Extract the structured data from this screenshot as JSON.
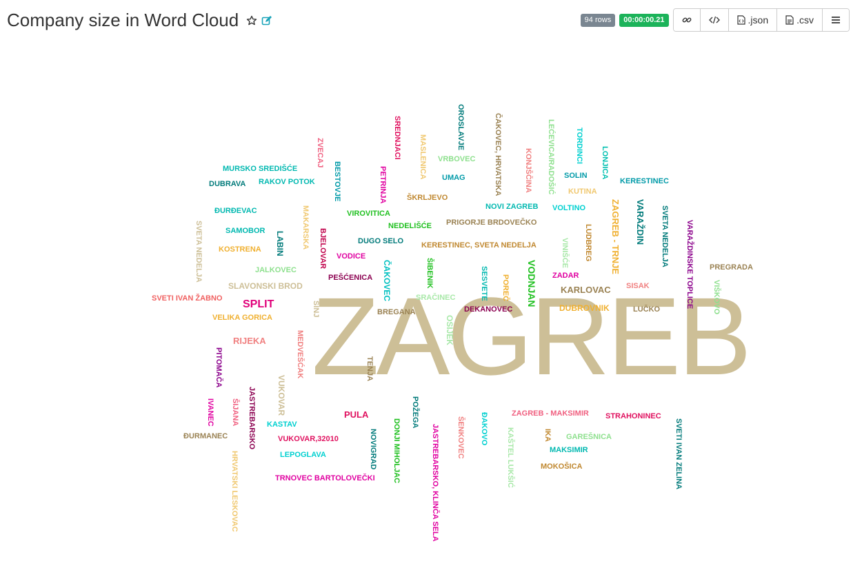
{
  "header": {
    "title": "Company size in Word Cloud",
    "rows_badge": "94 rows",
    "time_badge": "00:00:00.21",
    "buttons": [
      {
        "name": "link-button",
        "icon": "link-icon",
        "label": ""
      },
      {
        "name": "embed-button",
        "icon": "code-icon",
        "label": ""
      },
      {
        "name": "json-button",
        "icon": "file-code-icon",
        "label": ".json"
      },
      {
        "name": "csv-button",
        "icon": "file-text-icon",
        "label": ".csv"
      },
      {
        "name": "menu-button",
        "icon": "hamburger-icon",
        "label": ""
      }
    ],
    "colors": {
      "star": "#333333",
      "edit": "#17a2b8",
      "rows_badge": "#7a8691",
      "time_badge": "#1cb35a"
    }
  },
  "cloud": {
    "words": [
      {
        "text": "ZAGREB",
        "color": "#cdbf97",
        "size": 160
      },
      {
        "text": "SREDNJACI",
        "color": "#e0115f",
        "size": 11,
        "rotate": 90
      },
      {
        "text": "OROSLAVJE",
        "color": "#007a7a",
        "size": 11,
        "rotate": 90
      },
      {
        "text": "ČAKOVEC, HRVATSKA",
        "color": "#9a8253",
        "size": 11,
        "rotate": 90
      },
      {
        "text": "LEĆEVICA/RADOŠIĆ",
        "color": "#8ee08e",
        "size": 11,
        "rotate": 90
      },
      {
        "text": "TORDINCI",
        "color": "#00d0d0",
        "size": 11,
        "rotate": 90
      },
      {
        "text": "LONJICA",
        "color": "#00c0b0",
        "size": 11,
        "rotate": 90
      },
      {
        "text": "ZVECAJ",
        "color": "#f06080",
        "size": 11,
        "rotate": 90
      },
      {
        "text": "MASLENICA",
        "color": "#f0c870",
        "size": 11,
        "rotate": 90
      },
      {
        "text": "KONJŠČINA",
        "color": "#f08080",
        "size": 11,
        "rotate": 90
      },
      {
        "text": "BESTOVJE",
        "color": "#009aa8",
        "size": 11,
        "rotate": 90
      },
      {
        "text": "MURSKO SREDIŠĆE",
        "color": "#00b8b0",
        "size": 11
      },
      {
        "text": "VRBOVEC",
        "color": "#8ee08e",
        "size": 11
      },
      {
        "text": "SOLIN",
        "color": "#009aa8",
        "size": 11
      },
      {
        "text": "PETRINJA",
        "color": "#e000a0",
        "size": 11,
        "rotate": 90
      },
      {
        "text": "UMAG",
        "color": "#009aa8",
        "size": 11
      },
      {
        "text": "KERESTINEC",
        "color": "#009aa8",
        "size": 11
      },
      {
        "text": "DUBRAVA",
        "color": "#007a7a",
        "size": 11
      },
      {
        "text": "RAKOV POTOK",
        "color": "#00b8b0",
        "size": 11
      },
      {
        "text": "KUTINA",
        "color": "#f0c870",
        "size": 11
      },
      {
        "text": "ŠKRLJEVO",
        "color": "#c08830",
        "size": 11
      },
      {
        "text": "ZAGREB - TRNJE",
        "color": "#f0b030",
        "size": 13,
        "rotate": 90
      },
      {
        "text": "VARAŽDIN",
        "color": "#007a7a",
        "size": 13,
        "rotate": 90
      },
      {
        "text": "SVETA NEDELJA",
        "color": "#007a7a",
        "size": 11,
        "rotate": 90
      },
      {
        "text": "NOVI ZAGREB",
        "color": "#00b8b0",
        "size": 11
      },
      {
        "text": "VOLTINO",
        "color": "#00d0d0",
        "size": 11
      },
      {
        "text": "ĐURĐEVAC",
        "color": "#00b8b0",
        "size": 11
      },
      {
        "text": "MAKARSKA",
        "color": "#f0c870",
        "size": 11,
        "rotate": 90
      },
      {
        "text": "VIROVITICA",
        "color": "#20c020",
        "size": 11
      },
      {
        "text": "SVETA NEDELJA",
        "color": "#cdbf97",
        "size": 11,
        "rotate": 90
      },
      {
        "text": "PRIGORJE BRDOVEČKO",
        "color": "#9a8253",
        "size": 11
      },
      {
        "text": "NEDELIŠĆE",
        "color": "#20c020",
        "size": 11
      },
      {
        "text": "LUDBREG",
        "color": "#c08830",
        "size": 11,
        "rotate": 90
      },
      {
        "text": "VARAŽDINSKE TOPLICE",
        "color": "#8b008b",
        "size": 11,
        "rotate": 90
      },
      {
        "text": "SAMOBOR",
        "color": "#00b8b0",
        "size": 11
      },
      {
        "text": "LABIN",
        "color": "#007a7a",
        "size": 12,
        "rotate": 90
      },
      {
        "text": "BJELOVAR",
        "color": "#c0004a",
        "size": 11,
        "rotate": 90
      },
      {
        "text": "DUGO SELO",
        "color": "#007a7a",
        "size": 11
      },
      {
        "text": "KERESTINEC, SVETA NEDELJA",
        "color": "#c08830",
        "size": 11
      },
      {
        "text": "VINIŠĆE",
        "color": "#a8e8a8",
        "size": 11,
        "rotate": 90
      },
      {
        "text": "KOSTRENA",
        "color": "#f0b030",
        "size": 11
      },
      {
        "text": "VODICE",
        "color": "#e000a0",
        "size": 11
      },
      {
        "text": "ČAKOVEC",
        "color": "#00c0c0",
        "size": 12,
        "rotate": 90
      },
      {
        "text": "ŠIBENIK",
        "color": "#20c020",
        "size": 11,
        "rotate": 90
      },
      {
        "text": "VODNJAN",
        "color": "#20c020",
        "size": 14,
        "rotate": 90
      },
      {
        "text": "PREGRADA",
        "color": "#9a8253",
        "size": 11
      },
      {
        "text": "JALKOVEC",
        "color": "#8ee08e",
        "size": 11
      },
      {
        "text": "SESVETE",
        "color": "#00b8b0",
        "size": 11,
        "rotate": 90
      },
      {
        "text": "POREČ",
        "color": "#f0b030",
        "size": 11,
        "rotate": 90
      },
      {
        "text": "ZADAR",
        "color": "#e000a0",
        "size": 11
      },
      {
        "text": "PEŠĆENICA",
        "color": "#8b0050",
        "size": 11
      },
      {
        "text": "SLAVONSKI BROD",
        "color": "#cdbf97",
        "size": 12
      },
      {
        "text": "KARLOVAC",
        "color": "#9a8253",
        "size": 13
      },
      {
        "text": "SISAK",
        "color": "#f08080",
        "size": 11
      },
      {
        "text": "VIŠKOVO",
        "color": "#8ee08e",
        "size": 11,
        "rotate": 90
      },
      {
        "text": "SVETI IVAN ŽABNO",
        "color": "#f06060",
        "size": 11
      },
      {
        "text": "SRAČINEC",
        "color": "#a8e8a8",
        "size": 11
      },
      {
        "text": "SPLIT",
        "color": "#e0007a",
        "size": 16
      },
      {
        "text": "SINJ",
        "color": "#cdbf97",
        "size": 11,
        "rotate": 90
      },
      {
        "text": "DEKANOVEC",
        "color": "#8b0050",
        "size": 11
      },
      {
        "text": "DUBROVNIK",
        "color": "#f0b030",
        "size": 12
      },
      {
        "text": "LUČKO",
        "color": "#9a8253",
        "size": 11
      },
      {
        "text": "VELIKA GORICA",
        "color": "#f0b030",
        "size": 11
      },
      {
        "text": "BREGANA",
        "color": "#9a8253",
        "size": 11
      },
      {
        "text": "OSIJEK",
        "color": "#a8e8a8",
        "size": 12,
        "rotate": 90
      },
      {
        "text": "RIJEKA",
        "color": "#f08080",
        "size": 13
      },
      {
        "text": "MEDVEŠĆAK",
        "color": "#f08080",
        "size": 11,
        "rotate": 90
      },
      {
        "text": "TENJA",
        "color": "#9a8253",
        "size": 11,
        "rotate": 90
      },
      {
        "text": "PITOMAČA",
        "color": "#8b008b",
        "size": 11,
        "rotate": 90
      },
      {
        "text": "VUKOVAR",
        "color": "#cdbf97",
        "size": 12,
        "rotate": 90
      },
      {
        "text": "JASTREBARSKO",
        "color": "#8b0050",
        "size": 11,
        "rotate": 90
      },
      {
        "text": "IVANEC",
        "color": "#e000a0",
        "size": 11,
        "rotate": 90
      },
      {
        "text": "ŠIJANA",
        "color": "#f06080",
        "size": 11,
        "rotate": 90
      },
      {
        "text": "POŽEGA",
        "color": "#007a7a",
        "size": 11,
        "rotate": 90
      },
      {
        "text": "PULA",
        "color": "#e0115f",
        "size": 13
      },
      {
        "text": "ZAGREB - MAKSIMIR",
        "color": "#f06080",
        "size": 11
      },
      {
        "text": "STRAHONINEC",
        "color": "#e0115f",
        "size": 11
      },
      {
        "text": "KASTAV",
        "color": "#00d0d0",
        "size": 11
      },
      {
        "text": "DONJI MIHOLJAC",
        "color": "#20c020",
        "size": 11,
        "rotate": 90
      },
      {
        "text": "JASTREBARSKO, KLINČA SELA",
        "color": "#e000a0",
        "size": 11,
        "rotate": 90
      },
      {
        "text": "ŠENKOVEC",
        "color": "#f08080",
        "size": 11,
        "rotate": 90
      },
      {
        "text": "ĐAKOVO",
        "color": "#00d0d0",
        "size": 11,
        "rotate": 90
      },
      {
        "text": "IKA",
        "color": "#c08830",
        "size": 11,
        "rotate": 90
      },
      {
        "text": "SVETI IVAN ZELINA",
        "color": "#007a7a",
        "size": 11,
        "rotate": 90
      },
      {
        "text": "ĐURMANEC",
        "color": "#9a8253",
        "size": 11
      },
      {
        "text": "VUKOVAR,32010",
        "color": "#e0115f",
        "size": 11
      },
      {
        "text": "NOVIGRAD",
        "color": "#007a7a",
        "size": 11,
        "rotate": 90
      },
      {
        "text": "KAŠTEL LUKŠIĆ",
        "color": "#a8e8a8",
        "size": 11,
        "rotate": 90
      },
      {
        "text": "GAREŠNICA",
        "color": "#8ee08e",
        "size": 11
      },
      {
        "text": "MAKSIMIR",
        "color": "#00b8b0",
        "size": 11
      },
      {
        "text": "LEPOGLAVA",
        "color": "#00d0d0",
        "size": 11
      },
      {
        "text": "HRVATSKI LESKOVAC",
        "color": "#f0c870",
        "size": 11,
        "rotate": 90
      },
      {
        "text": "MOKOŠICA",
        "color": "#c08830",
        "size": 11
      },
      {
        "text": "TRNOVEC BARTOLOVEČKI",
        "color": "#e000a0",
        "size": 11
      }
    ]
  }
}
